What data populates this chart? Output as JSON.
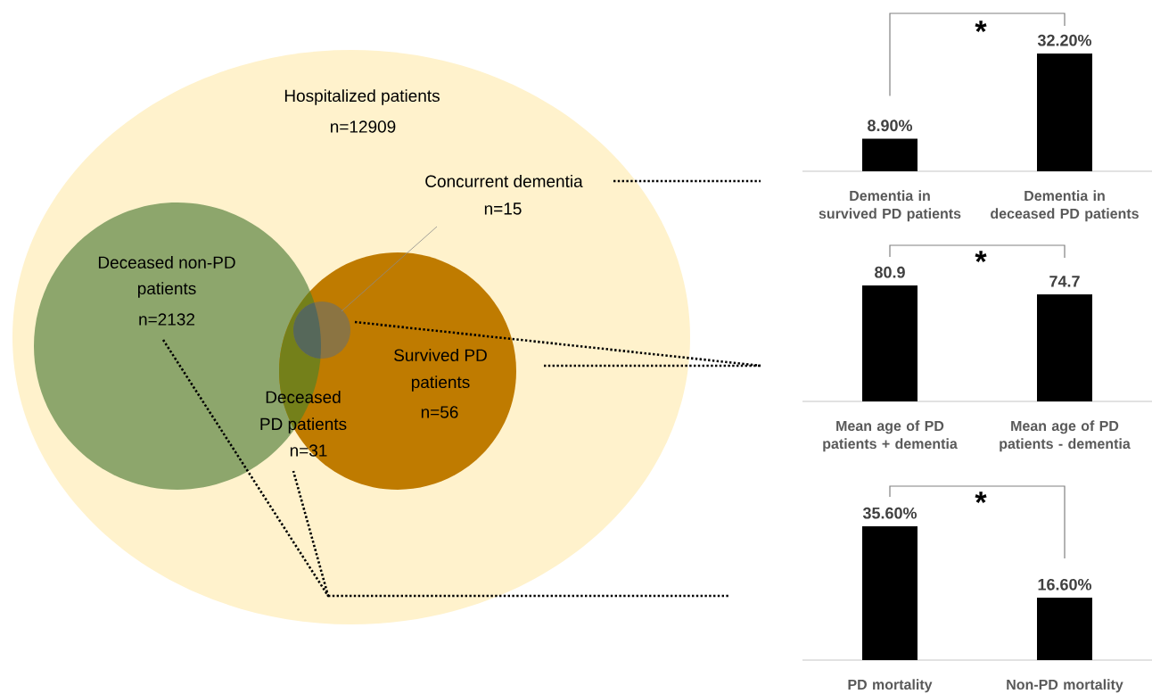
{
  "chart_data": [
    {
      "type": "other",
      "annotations": [
        "Hospitalized patients",
        "n=12909",
        "Concurrent dementia",
        "n=15",
        "Deceased non-PD",
        "patients",
        "n=2132",
        "Survived PD",
        "patients",
        "n=56",
        "Deceased",
        "PD patients",
        "n=31"
      ]
    },
    {
      "type": "bar",
      "categories": [
        "Dementia in survived PD patients",
        "Dementia in deceased PD patients"
      ],
      "values": [
        8.9,
        32.2
      ],
      "value_labels": [
        "8.90%",
        "32.20%"
      ],
      "color": "#000000",
      "tick_labels": "x",
      "annotations": [
        "*"
      ]
    },
    {
      "type": "bar",
      "categories": [
        "Mean age of PD patients + dementia",
        "Mean age of PD patients - dementia"
      ],
      "values": [
        80.9,
        74.7
      ],
      "data_labels": true,
      "color": "#000000",
      "tick_labels": "x",
      "annotations": [
        "*"
      ]
    },
    {
      "type": "bar",
      "categories": [
        "PD mortality",
        "Non-PD mortality"
      ],
      "values": [
        35.6,
        16.6
      ],
      "value_labels": [
        "35.60%",
        "16.60%"
      ],
      "color": "#000000",
      "tick_labels": "x",
      "annotations": [
        "*"
      ]
    }
  ]
}
